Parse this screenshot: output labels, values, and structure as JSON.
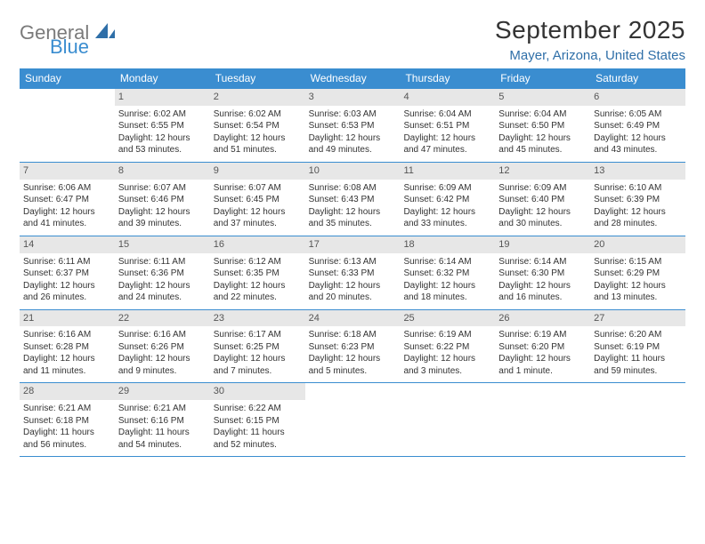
{
  "logo": {
    "text1": "General",
    "text2": "Blue"
  },
  "title": "September 2025",
  "location": "Mayer, Arizona, United States",
  "colors": {
    "header_bg": "#3a8dd0",
    "header_fg": "#ffffff",
    "daynum_bg": "#e7e7e7",
    "daynum_fg": "#555555",
    "rule": "#3a8dd0",
    "location_fg": "#2f6fa8",
    "logo_gray": "#7a7a7a",
    "logo_blue": "#3a8dd0"
  },
  "dow": [
    "Sunday",
    "Monday",
    "Tuesday",
    "Wednesday",
    "Thursday",
    "Friday",
    "Saturday"
  ],
  "weeks": [
    [
      {
        "blank": true
      },
      {
        "num": "1",
        "sunrise": "Sunrise: 6:02 AM",
        "sunset": "Sunset: 6:55 PM",
        "day1": "Daylight: 12 hours",
        "day2": "and 53 minutes."
      },
      {
        "num": "2",
        "sunrise": "Sunrise: 6:02 AM",
        "sunset": "Sunset: 6:54 PM",
        "day1": "Daylight: 12 hours",
        "day2": "and 51 minutes."
      },
      {
        "num": "3",
        "sunrise": "Sunrise: 6:03 AM",
        "sunset": "Sunset: 6:53 PM",
        "day1": "Daylight: 12 hours",
        "day2": "and 49 minutes."
      },
      {
        "num": "4",
        "sunrise": "Sunrise: 6:04 AM",
        "sunset": "Sunset: 6:51 PM",
        "day1": "Daylight: 12 hours",
        "day2": "and 47 minutes."
      },
      {
        "num": "5",
        "sunrise": "Sunrise: 6:04 AM",
        "sunset": "Sunset: 6:50 PM",
        "day1": "Daylight: 12 hours",
        "day2": "and 45 minutes."
      },
      {
        "num": "6",
        "sunrise": "Sunrise: 6:05 AM",
        "sunset": "Sunset: 6:49 PM",
        "day1": "Daylight: 12 hours",
        "day2": "and 43 minutes."
      }
    ],
    [
      {
        "num": "7",
        "sunrise": "Sunrise: 6:06 AM",
        "sunset": "Sunset: 6:47 PM",
        "day1": "Daylight: 12 hours",
        "day2": "and 41 minutes."
      },
      {
        "num": "8",
        "sunrise": "Sunrise: 6:07 AM",
        "sunset": "Sunset: 6:46 PM",
        "day1": "Daylight: 12 hours",
        "day2": "and 39 minutes."
      },
      {
        "num": "9",
        "sunrise": "Sunrise: 6:07 AM",
        "sunset": "Sunset: 6:45 PM",
        "day1": "Daylight: 12 hours",
        "day2": "and 37 minutes."
      },
      {
        "num": "10",
        "sunrise": "Sunrise: 6:08 AM",
        "sunset": "Sunset: 6:43 PM",
        "day1": "Daylight: 12 hours",
        "day2": "and 35 minutes."
      },
      {
        "num": "11",
        "sunrise": "Sunrise: 6:09 AM",
        "sunset": "Sunset: 6:42 PM",
        "day1": "Daylight: 12 hours",
        "day2": "and 33 minutes."
      },
      {
        "num": "12",
        "sunrise": "Sunrise: 6:09 AM",
        "sunset": "Sunset: 6:40 PM",
        "day1": "Daylight: 12 hours",
        "day2": "and 30 minutes."
      },
      {
        "num": "13",
        "sunrise": "Sunrise: 6:10 AM",
        "sunset": "Sunset: 6:39 PM",
        "day1": "Daylight: 12 hours",
        "day2": "and 28 minutes."
      }
    ],
    [
      {
        "num": "14",
        "sunrise": "Sunrise: 6:11 AM",
        "sunset": "Sunset: 6:37 PM",
        "day1": "Daylight: 12 hours",
        "day2": "and 26 minutes."
      },
      {
        "num": "15",
        "sunrise": "Sunrise: 6:11 AM",
        "sunset": "Sunset: 6:36 PM",
        "day1": "Daylight: 12 hours",
        "day2": "and 24 minutes."
      },
      {
        "num": "16",
        "sunrise": "Sunrise: 6:12 AM",
        "sunset": "Sunset: 6:35 PM",
        "day1": "Daylight: 12 hours",
        "day2": "and 22 minutes."
      },
      {
        "num": "17",
        "sunrise": "Sunrise: 6:13 AM",
        "sunset": "Sunset: 6:33 PM",
        "day1": "Daylight: 12 hours",
        "day2": "and 20 minutes."
      },
      {
        "num": "18",
        "sunrise": "Sunrise: 6:14 AM",
        "sunset": "Sunset: 6:32 PM",
        "day1": "Daylight: 12 hours",
        "day2": "and 18 minutes."
      },
      {
        "num": "19",
        "sunrise": "Sunrise: 6:14 AM",
        "sunset": "Sunset: 6:30 PM",
        "day1": "Daylight: 12 hours",
        "day2": "and 16 minutes."
      },
      {
        "num": "20",
        "sunrise": "Sunrise: 6:15 AM",
        "sunset": "Sunset: 6:29 PM",
        "day1": "Daylight: 12 hours",
        "day2": "and 13 minutes."
      }
    ],
    [
      {
        "num": "21",
        "sunrise": "Sunrise: 6:16 AM",
        "sunset": "Sunset: 6:28 PM",
        "day1": "Daylight: 12 hours",
        "day2": "and 11 minutes."
      },
      {
        "num": "22",
        "sunrise": "Sunrise: 6:16 AM",
        "sunset": "Sunset: 6:26 PM",
        "day1": "Daylight: 12 hours",
        "day2": "and 9 minutes."
      },
      {
        "num": "23",
        "sunrise": "Sunrise: 6:17 AM",
        "sunset": "Sunset: 6:25 PM",
        "day1": "Daylight: 12 hours",
        "day2": "and 7 minutes."
      },
      {
        "num": "24",
        "sunrise": "Sunrise: 6:18 AM",
        "sunset": "Sunset: 6:23 PM",
        "day1": "Daylight: 12 hours",
        "day2": "and 5 minutes."
      },
      {
        "num": "25",
        "sunrise": "Sunrise: 6:19 AM",
        "sunset": "Sunset: 6:22 PM",
        "day1": "Daylight: 12 hours",
        "day2": "and 3 minutes."
      },
      {
        "num": "26",
        "sunrise": "Sunrise: 6:19 AM",
        "sunset": "Sunset: 6:20 PM",
        "day1": "Daylight: 12 hours",
        "day2": "and 1 minute."
      },
      {
        "num": "27",
        "sunrise": "Sunrise: 6:20 AM",
        "sunset": "Sunset: 6:19 PM",
        "day1": "Daylight: 11 hours",
        "day2": "and 59 minutes."
      }
    ],
    [
      {
        "num": "28",
        "sunrise": "Sunrise: 6:21 AM",
        "sunset": "Sunset: 6:18 PM",
        "day1": "Daylight: 11 hours",
        "day2": "and 56 minutes."
      },
      {
        "num": "29",
        "sunrise": "Sunrise: 6:21 AM",
        "sunset": "Sunset: 6:16 PM",
        "day1": "Daylight: 11 hours",
        "day2": "and 54 minutes."
      },
      {
        "num": "30",
        "sunrise": "Sunrise: 6:22 AM",
        "sunset": "Sunset: 6:15 PM",
        "day1": "Daylight: 11 hours",
        "day2": "and 52 minutes."
      },
      {
        "blank": true
      },
      {
        "blank": true
      },
      {
        "blank": true
      },
      {
        "blank": true
      }
    ]
  ]
}
